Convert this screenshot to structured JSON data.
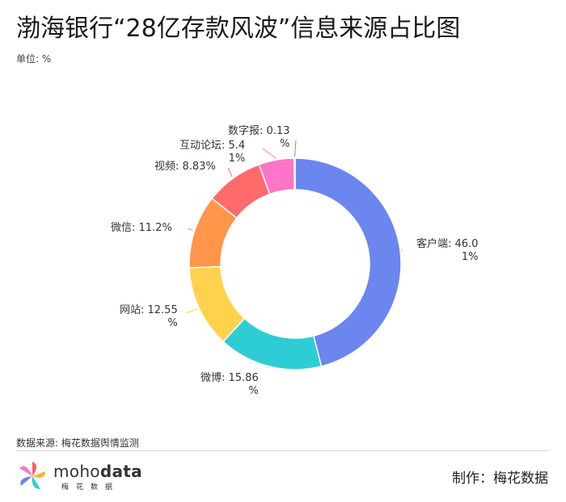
{
  "title": "渤海银行“28亿存款风波”信息来源占比图",
  "unit": "单位: %",
  "source": "数据来源: 梅花数据舆情监测",
  "logo": {
    "brand_light": "moho",
    "brand_bold": "data",
    "sub": "梅花数据"
  },
  "maker": "制作：梅花数据",
  "chart_data": {
    "type": "pie",
    "donut": true,
    "title": "渤海银行“28亿存款风波”信息来源占比图",
    "unit": "%",
    "categories": [
      "客户端",
      "微博",
      "网站",
      "微信",
      "视频",
      "互动论坛",
      "数字报"
    ],
    "values": [
      46.01,
      15.86,
      12.55,
      11.2,
      8.83,
      5.41,
      0.13
    ],
    "colors": [
      "#6b86ee",
      "#2ecdd6",
      "#ffd24d",
      "#ff9649",
      "#ff6b6b",
      "#ff75c7",
      "#a86fe0"
    ],
    "label_lines": [
      [
        "客户端: 46.0",
        "1%"
      ],
      [
        "微博: 15.86",
        "%"
      ],
      [
        "网站: 12.55",
        "%"
      ],
      [
        "微信: 11.2%"
      ],
      [
        "视频: 8.83%"
      ],
      [
        "互动论坛: 5.4",
        "1%"
      ],
      [
        "数字报: 0.13",
        "%"
      ]
    ]
  }
}
